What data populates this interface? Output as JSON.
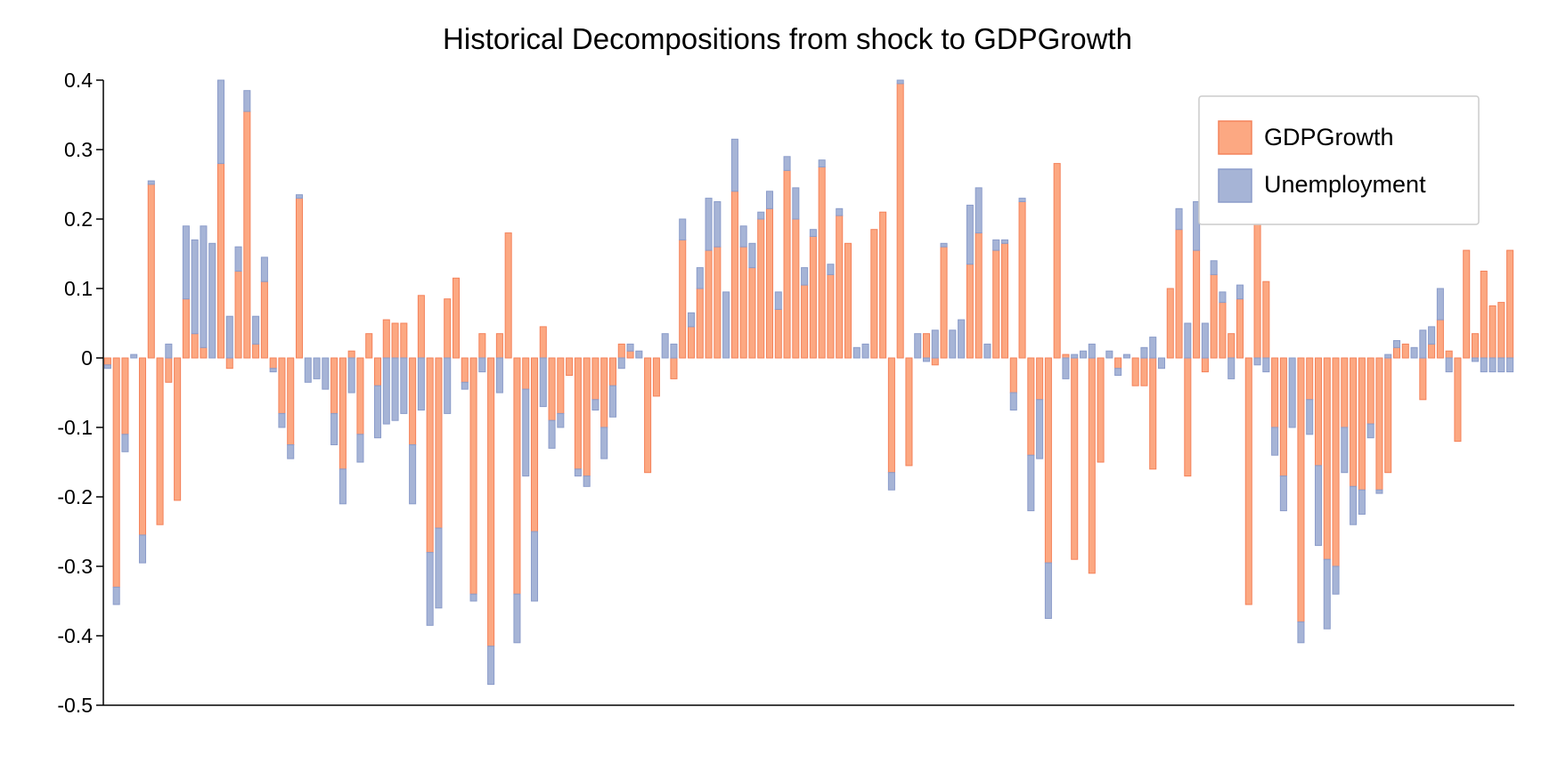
{
  "chart_data": {
    "type": "bar",
    "stacked": true,
    "title": "Historical Decompositions from shock to GDPGrowth",
    "xlabel": "",
    "ylabel": "",
    "ylim": [
      -0.5,
      0.4
    ],
    "yticks": [
      0.4,
      0.3,
      0.2,
      0.1,
      0,
      -0.1,
      -0.2,
      -0.3,
      -0.4,
      -0.5
    ],
    "ytick_labels": [
      "0.4",
      "0.3",
      "0.2",
      "0.1",
      "0",
      "-0.1",
      "-0.2",
      "-0.3",
      "-0.4",
      "-0.5"
    ],
    "grid": false,
    "legend_position": "top-right",
    "series": [
      {
        "name": "GDPGrowth",
        "color": "#fca882",
        "edge_color": "#f4825a",
        "values": [
          -0.01,
          -0.33,
          -0.11,
          0.0,
          -0.255,
          0.25,
          -0.24,
          -0.035,
          -0.205,
          0.085,
          0.035,
          0.015,
          0.0,
          0.28,
          -0.015,
          0.125,
          0.355,
          0.02,
          0.11,
          -0.015,
          -0.08,
          -0.125,
          0.23,
          0.0,
          0.0,
          0.0,
          -0.08,
          -0.16,
          0.01,
          -0.11,
          0.035,
          -0.04,
          0.055,
          0.05,
          0.05,
          -0.125,
          0.09,
          -0.28,
          -0.245,
          0.085,
          0.115,
          -0.035,
          -0.34,
          0.035,
          -0.415,
          0.035,
          0.18,
          -0.34,
          -0.045,
          -0.25,
          0.045,
          -0.09,
          -0.08,
          -0.025,
          -0.16,
          -0.17,
          -0.06,
          -0.1,
          -0.04,
          0.02,
          0.01,
          0.0,
          -0.165,
          -0.055,
          0.0,
          -0.03,
          0.17,
          0.045,
          0.1,
          0.155,
          0.16,
          0.0,
          0.24,
          0.16,
          0.13,
          0.2,
          0.215,
          0.07,
          0.27,
          0.2,
          0.105,
          0.175,
          0.275,
          0.12,
          0.205,
          0.165,
          0.0,
          0.0,
          0.185,
          0.21,
          -0.165,
          0.395,
          -0.155,
          0.0,
          0.035,
          -0.01,
          0.16,
          0.0,
          0.0,
          0.135,
          0.18,
          0.0,
          0.155,
          0.165,
          -0.05,
          0.225,
          -0.14,
          -0.06,
          -0.295,
          0.28,
          0.005,
          -0.29,
          0.0,
          -0.31,
          -0.15,
          0.0,
          -0.015,
          0.0,
          -0.04,
          -0.04,
          -0.16,
          0.0,
          0.1,
          0.185,
          -0.17,
          0.155,
          -0.02,
          0.12,
          0.08,
          0.035,
          0.085,
          -0.355,
          0.21,
          0.11,
          -0.1,
          -0.17,
          0.0,
          -0.38,
          -0.06,
          -0.155,
          -0.29,
          -0.3,
          -0.1,
          -0.185,
          -0.19,
          -0.095,
          -0.19,
          -0.165,
          0.015,
          0.02,
          0.0,
          -0.06,
          0.02,
          0.055,
          0.01,
          -0.12,
          0.155,
          0.035,
          0.125,
          0.075,
          0.08,
          0.155
        ]
      },
      {
        "name": "Unemployment",
        "color": "#a6b4d6",
        "edge_color": "#8b9cca",
        "values": [
          -0.005,
          -0.025,
          -0.025,
          0.005,
          -0.04,
          0.005,
          0.0,
          0.02,
          0.0,
          0.105,
          0.135,
          0.175,
          0.165,
          0.12,
          0.06,
          0.035,
          0.03,
          0.04,
          0.035,
          -0.005,
          -0.02,
          -0.02,
          0.005,
          -0.035,
          -0.03,
          -0.045,
          -0.045,
          -0.05,
          -0.05,
          -0.04,
          0.0,
          -0.075,
          -0.095,
          -0.09,
          -0.08,
          -0.085,
          -0.075,
          -0.105,
          -0.115,
          -0.08,
          0.0,
          -0.01,
          -0.01,
          -0.02,
          -0.055,
          -0.05,
          0.0,
          -0.07,
          -0.125,
          -0.1,
          -0.07,
          -0.04,
          -0.02,
          0.0,
          -0.01,
          -0.015,
          -0.015,
          -0.045,
          -0.045,
          -0.015,
          0.01,
          0.01,
          0.0,
          0.0,
          0.035,
          0.02,
          0.03,
          0.02,
          0.03,
          0.075,
          0.065,
          0.095,
          0.075,
          0.03,
          0.035,
          0.01,
          0.025,
          0.025,
          0.02,
          0.045,
          0.025,
          0.01,
          0.01,
          0.015,
          0.01,
          0.0,
          0.015,
          0.02,
          0.0,
          0.0,
          -0.025,
          0.005,
          0.0,
          0.035,
          -0.005,
          0.04,
          0.005,
          0.04,
          0.055,
          0.085,
          0.065,
          0.02,
          0.015,
          0.005,
          -0.025,
          0.005,
          -0.08,
          -0.085,
          -0.08,
          0.0,
          -0.03,
          0.005,
          0.01,
          0.02,
          0.0,
          0.01,
          -0.01,
          0.005,
          0.0,
          0.015,
          0.03,
          -0.015,
          0.0,
          0.03,
          0.05,
          0.07,
          0.05,
          0.02,
          0.015,
          -0.03,
          0.02,
          0.0,
          -0.01,
          -0.02,
          -0.04,
          -0.05,
          -0.1,
          -0.03,
          -0.05,
          -0.115,
          -0.1,
          -0.04,
          -0.065,
          -0.055,
          -0.035,
          -0.02,
          -0.005,
          0.005,
          0.01,
          0.0,
          0.015,
          0.04,
          0.025,
          0.045,
          -0.02,
          0.0,
          0.0,
          -0.005,
          -0.02,
          -0.02,
          -0.02,
          -0.02
        ]
      }
    ]
  }
}
